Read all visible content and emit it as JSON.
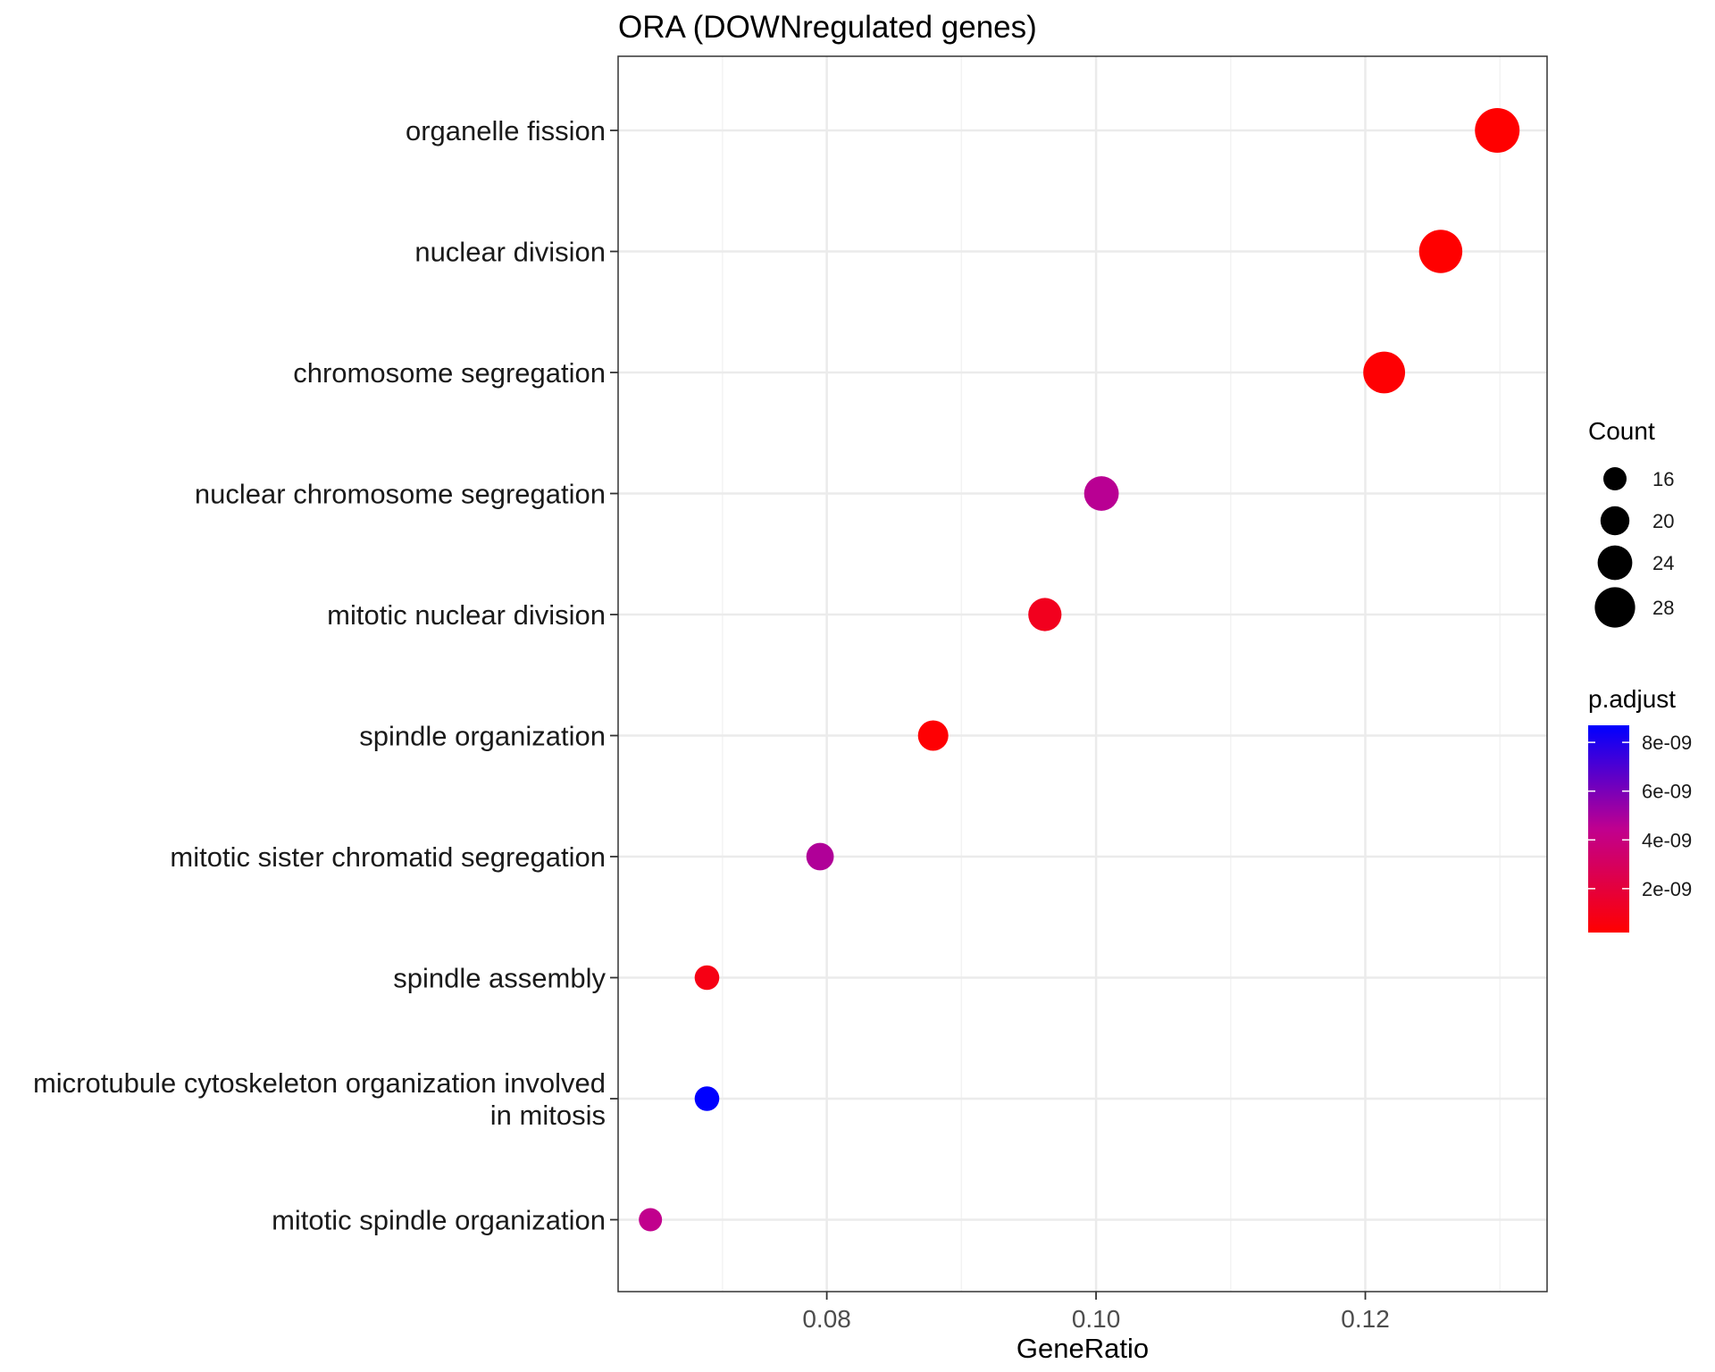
{
  "chart_data": {
    "type": "scatter",
    "title": "ORA (DOWNregulated genes)",
    "xlabel": "GeneRatio",
    "ylabel": "",
    "xlim": [
      0.0645,
      0.1335
    ],
    "x_ticks": [
      "0.08",
      "0.10",
      "0.12"
    ],
    "x_tick_values": [
      0.08,
      0.1,
      0.12
    ],
    "grid": true,
    "categories": [
      [
        "organelle fission"
      ],
      [
        "nuclear division"
      ],
      [
        "chromosome segregation"
      ],
      [
        "nuclear chromosome segregation"
      ],
      [
        "mitotic nuclear division"
      ],
      [
        "spindle organization"
      ],
      [
        "mitotic sister chromatid segregation"
      ],
      [
        "spindle assembly"
      ],
      [
        "microtubule cytoskeleton organization involved",
        "in mitosis"
      ],
      [
        "mitotic spindle organization"
      ]
    ],
    "points": [
      {
        "x": 0.1298,
        "count": 31,
        "p_adjust": 2e-10
      },
      {
        "x": 0.1256,
        "count": 30,
        "p_adjust": 2e-10
      },
      {
        "x": 0.1214,
        "count": 29,
        "p_adjust": 3e-10
      },
      {
        "x": 0.1004,
        "count": 24,
        "p_adjust": 4.6e-09
      },
      {
        "x": 0.0962,
        "count": 23,
        "p_adjust": 1.1e-09
      },
      {
        "x": 0.0879,
        "count": 21,
        "p_adjust": 3e-10
      },
      {
        "x": 0.0795,
        "count": 19,
        "p_adjust": 4.8e-09
      },
      {
        "x": 0.0711,
        "count": 17,
        "p_adjust": 8e-10
      },
      {
        "x": 0.0711,
        "count": 17,
        "p_adjust": 8.7e-09
      },
      {
        "x": 0.0669,
        "count": 16,
        "p_adjust": 4.4e-09
      }
    ],
    "size_legend": {
      "title": "Count",
      "values": [
        16,
        20,
        24,
        28
      ],
      "labels": [
        "16",
        "20",
        "24",
        "28"
      ]
    },
    "color_legend": {
      "title": "p.adjust",
      "low_color": "#ff0000",
      "high_color": "#0000ff",
      "range": [
        2e-10,
        8.7e-09
      ],
      "tick_values": [
        8e-09,
        6e-09,
        4e-09,
        2e-09
      ],
      "labels": [
        "8e-09",
        "6e-09",
        "4e-09",
        "2e-09"
      ]
    }
  },
  "colors": {
    "grid_major": "#ebebeb",
    "grid_minor": "#f3f3f3",
    "panel_border": "#333333"
  }
}
